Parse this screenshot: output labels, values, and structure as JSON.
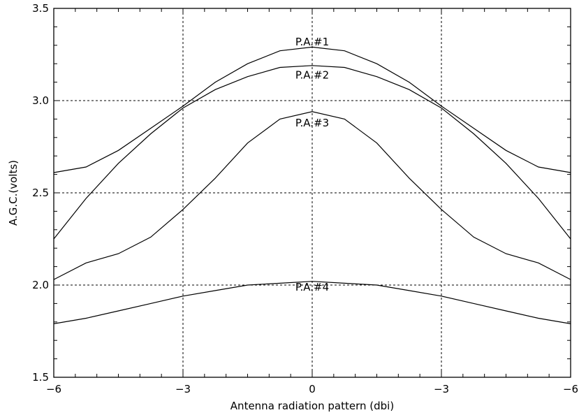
{
  "chart_data": {
    "type": "line",
    "xlabel": "Antenna radiation pattern (dbi)",
    "ylabel": "A.G.C.(volts)",
    "xlim": [
      -6,
      6
    ],
    "ylim": [
      1.5,
      3.5
    ],
    "x_ticks": [
      -6,
      -3,
      0,
      3,
      6
    ],
    "x_tick_labels": [
      "−6",
      "−3",
      "0",
      "−3",
      "−6"
    ],
    "y_ticks": [
      1.5,
      2.0,
      2.5,
      3.0,
      3.5
    ],
    "y_tick_labels": [
      "1.5",
      "2.0",
      "2.5",
      "3.0",
      "3.5"
    ],
    "grid": "dashed at major ticks",
    "x": [
      -6,
      -5.25,
      -4.5,
      -3.75,
      -3,
      -2.25,
      -1.5,
      -0.75,
      0,
      0.75,
      1.5,
      2.25,
      3,
      3.75,
      4.5,
      5.25,
      6
    ],
    "series": [
      {
        "name": "P.A.#1",
        "label_x": 0,
        "label_y": 3.3,
        "values": [
          2.61,
          2.64,
          2.73,
          2.85,
          2.97,
          3.1,
          3.2,
          3.27,
          3.29,
          3.27,
          3.2,
          3.1,
          2.97,
          2.85,
          2.73,
          2.64,
          2.61
        ]
      },
      {
        "name": "P.A.#2",
        "label_x": 0,
        "label_y": 3.12,
        "values": [
          2.25,
          2.47,
          2.66,
          2.82,
          2.96,
          3.06,
          3.13,
          3.18,
          3.19,
          3.18,
          3.13,
          3.06,
          2.96,
          2.82,
          2.66,
          2.47,
          2.25
        ]
      },
      {
        "name": "P.A.#3",
        "label_x": 0,
        "label_y": 2.86,
        "values": [
          2.03,
          2.12,
          2.17,
          2.26,
          2.41,
          2.58,
          2.77,
          2.9,
          2.94,
          2.9,
          2.77,
          2.58,
          2.41,
          2.26,
          2.17,
          2.12,
          2.03
        ]
      },
      {
        "name": "P.A.#4",
        "label_x": 0,
        "label_y": 1.97,
        "values": [
          1.79,
          1.82,
          1.86,
          1.9,
          1.94,
          1.97,
          2.0,
          2.01,
          2.02,
          2.01,
          2.0,
          1.97,
          1.94,
          1.9,
          1.86,
          1.82,
          1.79
        ]
      }
    ]
  }
}
